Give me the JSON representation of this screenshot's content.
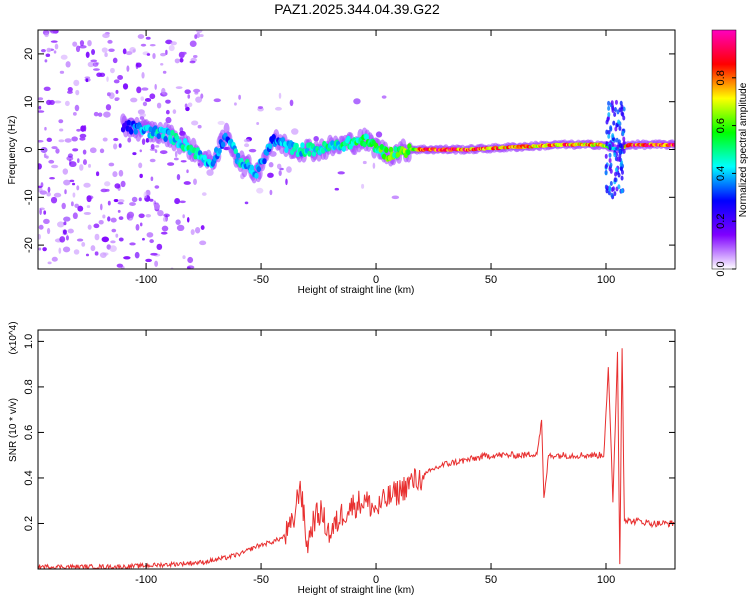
{
  "title": "PAZ1.2025.344.04.39.G22",
  "chart_data": [
    {
      "type": "heatmap",
      "name": "spectrogram",
      "xlabel": "Height of straight line (km)",
      "ylabel": "Frequency (Hz)",
      "xlim": [
        -147,
        130
      ],
      "ylim": [
        -25,
        25
      ],
      "xticks": [
        -100,
        -50,
        0,
        50,
        100
      ],
      "xtick_labels": [
        "-100",
        "-50",
        "0",
        "50",
        "100"
      ],
      "yticks": [
        -20,
        -10,
        0,
        10,
        20
      ],
      "ytick_labels": [
        "-20",
        "-10",
        "0",
        "10",
        "20"
      ],
      "grid": false,
      "colorbar": {
        "label": "Normalized spectral amplitude",
        "range": [
          0,
          1
        ],
        "ticks": [
          0.0,
          0.2,
          0.4,
          0.6,
          0.8
        ],
        "tick_labels": [
          "0.0",
          "0.2",
          "0.4",
          "0.6",
          "0.8"
        ],
        "colormap": [
          "#ffffff",
          "#7f00ff",
          "#0000ff",
          "#00ffff",
          "#00ff00",
          "#ffff00",
          "#ff0000",
          "#ff00bf"
        ]
      },
      "ridge": [
        {
          "x": -110,
          "y": 5,
          "amp": 0.25
        },
        {
          "x": -100,
          "y": 4,
          "amp": 0.45
        },
        {
          "x": -90,
          "y": 3,
          "amp": 0.45
        },
        {
          "x": -80,
          "y": 0,
          "amp": 0.5
        },
        {
          "x": -72,
          "y": -3,
          "amp": 0.4
        },
        {
          "x": -65,
          "y": 3,
          "amp": 0.35
        },
        {
          "x": -60,
          "y": -2,
          "amp": 0.45
        },
        {
          "x": -52,
          "y": -5,
          "amp": 0.45
        },
        {
          "x": -45,
          "y": 2,
          "amp": 0.35
        },
        {
          "x": -35,
          "y": 0,
          "amp": 0.45
        },
        {
          "x": -25,
          "y": 0,
          "amp": 0.5
        },
        {
          "x": -15,
          "y": 1,
          "amp": 0.5
        },
        {
          "x": -5,
          "y": 2,
          "amp": 0.55
        },
        {
          "x": 5,
          "y": -1,
          "amp": 0.6
        },
        {
          "x": 15,
          "y": 0,
          "amp": 0.65
        },
        {
          "x": 20,
          "y": 0,
          "amp": 0.9
        },
        {
          "x": 40,
          "y": 0,
          "amp": 0.9
        },
        {
          "x": 60,
          "y": 0.5,
          "amp": 0.8
        },
        {
          "x": 80,
          "y": 1,
          "amp": 0.85
        },
        {
          "x": 98,
          "y": 1,
          "amp": 0.8
        },
        {
          "x": 105,
          "y": 0,
          "amp": 0.4
        },
        {
          "x": 110,
          "y": 1,
          "amp": 0.9
        },
        {
          "x": 130,
          "y": 1,
          "amp": 0.9
        }
      ]
    },
    {
      "type": "line",
      "name": "snr",
      "xlabel": "Height of straight line (km)",
      "ylabel": "SNR (10 * v/v)",
      "y_multiplier": "(x10^4)",
      "xlim": [
        -147,
        130
      ],
      "ylim": [
        0,
        1.05
      ],
      "xticks": [
        -100,
        -50,
        0,
        50,
        100
      ],
      "xtick_labels": [
        "-100",
        "-50",
        "0",
        "50",
        "100"
      ],
      "yticks": [
        0.2,
        0.4,
        0.6,
        0.8,
        1.0
      ],
      "ytick_labels": [
        "0.2",
        "0.4",
        "0.6",
        "0.8",
        "1.0"
      ],
      "grid": false,
      "color": "#e83030",
      "x": [
        -147,
        -130,
        -110,
        -90,
        -75,
        -65,
        -58,
        -52,
        -45,
        -40,
        -36,
        -33,
        -30,
        -27,
        -24,
        -20,
        -15,
        -10,
        -5,
        0,
        5,
        10,
        15,
        20,
        25,
        30,
        35,
        40,
        45,
        50,
        55,
        60,
        65,
        70,
        72,
        73,
        75,
        80,
        85,
        90,
        95,
        99,
        101,
        103,
        105,
        106,
        107,
        108,
        110,
        115,
        120,
        130
      ],
      "y": [
        0.01,
        0.01,
        0.01,
        0.02,
        0.03,
        0.05,
        0.07,
        0.1,
        0.12,
        0.14,
        0.2,
        0.38,
        0.1,
        0.22,
        0.25,
        0.15,
        0.24,
        0.28,
        0.3,
        0.26,
        0.31,
        0.34,
        0.38,
        0.4,
        0.44,
        0.46,
        0.47,
        0.48,
        0.49,
        0.5,
        0.5,
        0.5,
        0.5,
        0.51,
        0.65,
        0.3,
        0.5,
        0.5,
        0.5,
        0.5,
        0.5,
        0.5,
        0.88,
        0.3,
        0.95,
        0.02,
        0.98,
        0.22,
        0.21,
        0.21,
        0.2,
        0.2
      ]
    }
  ]
}
